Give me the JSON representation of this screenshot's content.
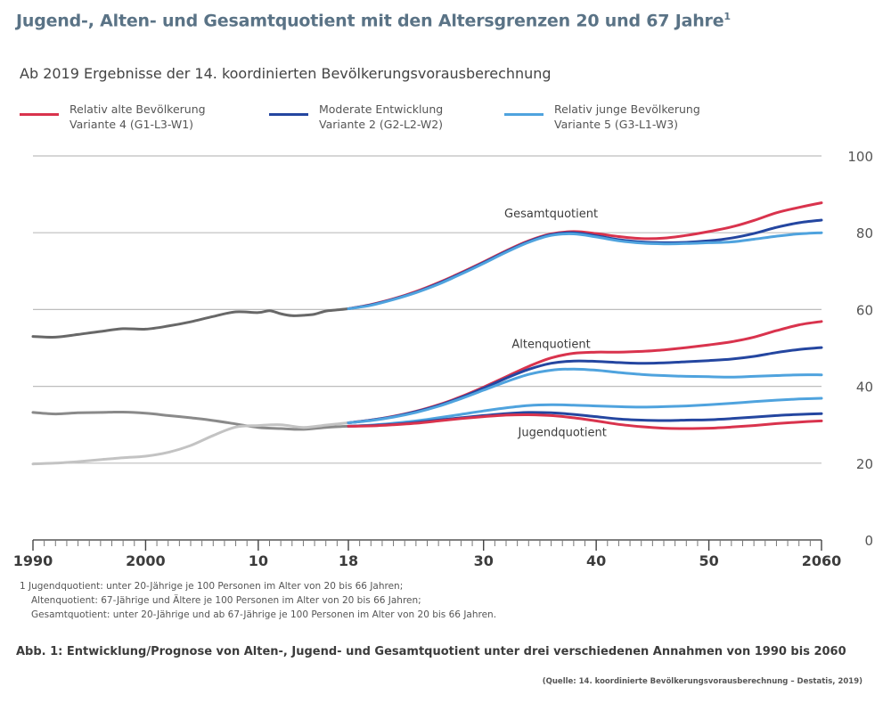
{
  "header": {
    "title": "Jugend-, Alten- und Gesamtquotient mit den Altersgrenzen 20 und 67 Jahre",
    "title_sup": "1",
    "subtitle": "Ab 2019 Ergebnisse der 14. koordinierten Bevölkerungsvorausberechnung"
  },
  "legend": [
    {
      "line1": "Relativ alte Bevölkerung",
      "line2": "Variante 4 (G1-L3-W1)",
      "color": "#d9334d"
    },
    {
      "line1": "Moderate Entwicklung",
      "line2": "Variante 2 (G2-L2-W2)",
      "color": "#2446a0"
    },
    {
      "line1": "Relativ junge Bevölkerung",
      "line2": "Variante 5 (G3-L1-W3)",
      "color": "#4fa3de"
    }
  ],
  "chart_data": {
    "type": "line",
    "x_tick_labels": [
      {
        "x": 1990,
        "label": "1990"
      },
      {
        "x": 2000,
        "label": "2000"
      },
      {
        "x": 2010,
        "label": "10"
      },
      {
        "x": 2018,
        "label": "18"
      },
      {
        "x": 2030,
        "label": "30"
      },
      {
        "x": 2040,
        "label": "40"
      },
      {
        "x": 2050,
        "label": "50"
      },
      {
        "x": 2060,
        "label": "2060"
      }
    ],
    "y_ticks": [
      0,
      20,
      40,
      60,
      80,
      100
    ],
    "xlim": [
      1990,
      2060
    ],
    "ylim": [
      0,
      100
    ],
    "grid": true,
    "annotations": [
      {
        "text": "Gesamtquotient",
        "x": 2036,
        "y": 84
      },
      {
        "text": "Altenquotient",
        "x": 2036,
        "y": 50
      },
      {
        "text": "Jugendquotient",
        "x": 2037,
        "y": 27
      }
    ],
    "historical": [
      {
        "name": "Gesamtquotient",
        "color": "#686868",
        "x": [
          1990,
          1992,
          1994,
          1996,
          1998,
          2000,
          2002,
          2004,
          2006,
          2008,
          2010,
          2011,
          2012,
          2013,
          2014,
          2015,
          2016,
          2017,
          2018
        ],
        "y": [
          53,
          52.8,
          53.5,
          54.3,
          55,
          54.9,
          55.7,
          56.8,
          58.2,
          59.4,
          59.2,
          59.7,
          58.9,
          58.4,
          58.5,
          58.8,
          59.6,
          59.9,
          60.2
        ]
      },
      {
        "name": "Jugendquotient",
        "color": "#8a8a8a",
        "x": [
          1990,
          1992,
          1994,
          1996,
          1998,
          2000,
          2002,
          2004,
          2006,
          2008,
          2010,
          2012,
          2014,
          2016,
          2018
        ],
        "y": [
          33.2,
          32.8,
          33.1,
          33.2,
          33.3,
          33,
          32.4,
          31.8,
          31.1,
          30.2,
          29.3,
          29,
          28.8,
          29.3,
          29.6
        ]
      },
      {
        "name": "Altenquotient",
        "color": "#c3c3c3",
        "x": [
          1990,
          1992,
          1994,
          1996,
          1998,
          2000,
          2002,
          2004,
          2006,
          2008,
          2010,
          2012,
          2014,
          2016,
          2018
        ],
        "y": [
          19.8,
          20,
          20.4,
          20.9,
          21.4,
          21.8,
          22.8,
          24.6,
          27.2,
          29.4,
          29.8,
          30,
          29.3,
          29.9,
          30.5
        ]
      }
    ],
    "series": [
      {
        "name": "Relativ alte Bevölkerung – Gesamtquotient",
        "color": "#d9334d",
        "x": [
          2018,
          2020,
          2022,
          2024,
          2026,
          2028,
          2030,
          2032,
          2034,
          2036,
          2038,
          2040,
          2042,
          2044,
          2046,
          2048,
          2050,
          2052,
          2054,
          2056,
          2058,
          2060
        ],
        "y": [
          60.2,
          61.3,
          62.8,
          64.7,
          67,
          69.6,
          72.4,
          75.3,
          77.9,
          79.7,
          80.3,
          79.8,
          79,
          78.5,
          78.6,
          79.3,
          80.3,
          81.5,
          83.2,
          85.2,
          86.6,
          87.8
        ]
      },
      {
        "name": "Moderate Entwicklung – Gesamtquotient",
        "color": "#2446a0",
        "x": [
          2018,
          2020,
          2022,
          2024,
          2026,
          2028,
          2030,
          2032,
          2034,
          2036,
          2038,
          2040,
          2042,
          2044,
          2046,
          2048,
          2050,
          2052,
          2054,
          2056,
          2058,
          2060
        ],
        "y": [
          60.2,
          61.2,
          62.7,
          64.5,
          66.8,
          69.4,
          72.2,
          75.1,
          77.7,
          79.5,
          80,
          79.2,
          78.2,
          77.6,
          77.4,
          77.5,
          77.9,
          78.6,
          79.8,
          81.4,
          82.6,
          83.3
        ]
      },
      {
        "name": "Relativ junge Bevölkerung – Gesamtquotient",
        "color": "#4fa3de",
        "x": [
          2018,
          2020,
          2022,
          2024,
          2026,
          2028,
          2030,
          2032,
          2034,
          2036,
          2038,
          2040,
          2042,
          2044,
          2046,
          2048,
          2050,
          2052,
          2054,
          2056,
          2058,
          2060
        ],
        "y": [
          60.2,
          61.1,
          62.6,
          64.4,
          66.6,
          69.2,
          72,
          74.9,
          77.5,
          79.3,
          79.7,
          78.9,
          77.9,
          77.3,
          77.1,
          77.2,
          77.4,
          77.6,
          78.3,
          79.1,
          79.7,
          80
        ]
      },
      {
        "name": "Relativ alte Bevölkerung – Altenquotient",
        "color": "#d9334d",
        "x": [
          2018,
          2020,
          2022,
          2024,
          2026,
          2028,
          2030,
          2032,
          2034,
          2036,
          2038,
          2040,
          2042,
          2044,
          2046,
          2048,
          2050,
          2052,
          2054,
          2056,
          2058,
          2060
        ],
        "y": [
          30.5,
          31.2,
          32.2,
          33.5,
          35.2,
          37.3,
          39.8,
          42.5,
          45.2,
          47.4,
          48.6,
          48.9,
          48.9,
          49.1,
          49.5,
          50.1,
          50.8,
          51.6,
          52.8,
          54.5,
          56,
          56.9
        ]
      },
      {
        "name": "Moderate Entwicklung – Altenquotient",
        "color": "#2446a0",
        "x": [
          2018,
          2020,
          2022,
          2024,
          2026,
          2028,
          2030,
          2032,
          2034,
          2036,
          2038,
          2040,
          2042,
          2044,
          2046,
          2048,
          2050,
          2052,
          2054,
          2056,
          2058,
          2060
        ],
        "y": [
          30.5,
          31.2,
          32.1,
          33.4,
          35,
          37.1,
          39.5,
          42.1,
          44.4,
          46,
          46.6,
          46.5,
          46.2,
          46,
          46.1,
          46.4,
          46.7,
          47.1,
          47.8,
          48.8,
          49.6,
          50.1
        ]
      },
      {
        "name": "Relativ junge Bevölkerung – Altenquotient",
        "color": "#4fa3de",
        "x": [
          2018,
          2020,
          2022,
          2024,
          2026,
          2028,
          2030,
          2032,
          2034,
          2036,
          2038,
          2040,
          2042,
          2044,
          2046,
          2048,
          2050,
          2052,
          2054,
          2056,
          2058,
          2060
        ],
        "y": [
          30.5,
          31.1,
          32,
          33.2,
          34.8,
          36.8,
          39,
          41.2,
          43.1,
          44.2,
          44.5,
          44.2,
          43.6,
          43.1,
          42.8,
          42.6,
          42.5,
          42.4,
          42.6,
          42.8,
          43,
          43
        ]
      },
      {
        "name": "Relativ junge Bevölkerung – Jugendquotient",
        "color": "#4fa3de",
        "x": [
          2018,
          2020,
          2022,
          2024,
          2026,
          2028,
          2030,
          2032,
          2034,
          2036,
          2038,
          2040,
          2042,
          2044,
          2046,
          2048,
          2050,
          2052,
          2054,
          2056,
          2058,
          2060
        ],
        "y": [
          29.6,
          29.9,
          30.4,
          31,
          31.8,
          32.7,
          33.6,
          34.4,
          35,
          35.2,
          35.1,
          34.9,
          34.7,
          34.6,
          34.7,
          34.9,
          35.2,
          35.6,
          36,
          36.4,
          36.7,
          36.9
        ]
      },
      {
        "name": "Moderate Entwicklung – Jugendquotient",
        "color": "#2446a0",
        "x": [
          2018,
          2020,
          2022,
          2024,
          2026,
          2028,
          2030,
          2032,
          2034,
          2036,
          2038,
          2040,
          2042,
          2044,
          2046,
          2048,
          2050,
          2052,
          2054,
          2056,
          2058,
          2060
        ],
        "y": [
          29.6,
          29.8,
          30.1,
          30.6,
          31.2,
          31.8,
          32.4,
          32.9,
          33.2,
          33.1,
          32.7,
          32.1,
          31.5,
          31.2,
          31.1,
          31.2,
          31.3,
          31.6,
          32,
          32.4,
          32.7,
          32.9
        ]
      },
      {
        "name": "Relativ alte Bevölkerung – Jugendquotient",
        "color": "#d9334d",
        "x": [
          2018,
          2020,
          2022,
          2024,
          2026,
          2028,
          2030,
          2032,
          2034,
          2036,
          2038,
          2040,
          2042,
          2044,
          2046,
          2048,
          2050,
          2052,
          2054,
          2056,
          2058,
          2060
        ],
        "y": [
          29.6,
          29.7,
          30,
          30.4,
          31,
          31.6,
          32.1,
          32.5,
          32.6,
          32.4,
          31.8,
          31,
          30.1,
          29.5,
          29.1,
          29,
          29.1,
          29.4,
          29.8,
          30.3,
          30.7,
          31
        ]
      }
    ]
  },
  "footnotes": [
    "1  Jugendquotient: unter 20-Jährige je 100 Personen im Alter von 20 bis 66 Jahren;",
    "Altenquotient: 67-Jährige und Ältere je 100 Personen im Alter von 20 bis 66 Jahren;",
    "Gesamtquotient: unter 20-Jährige und ab 67-Jährige je 100 Personen im Alter von 20 bis 66 Jahren."
  ],
  "caption": "Abb. 1: Entwicklung/Prognose von Alten-, Jugend- und Gesamtquotient unter drei verschiedenen Annahmen von 1990 bis 2060",
  "source": "(Quelle: 14. koordinierte Bevölkerungsvorausberechnung – Destatis, 2019)"
}
